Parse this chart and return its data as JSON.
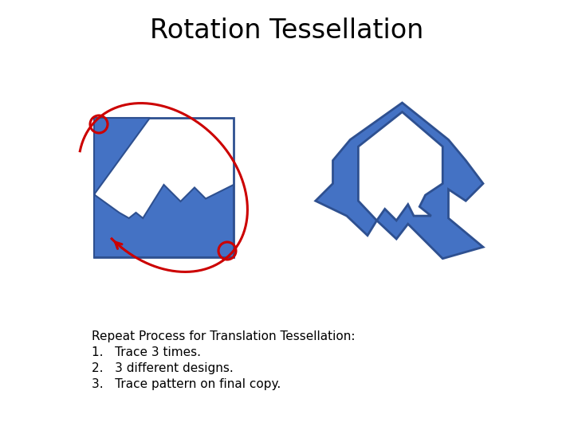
{
  "title": "Rotation Tessellation",
  "title_fontsize": 24,
  "bg_color": "#ffffff",
  "blue_color": "#4472C4",
  "blue_edge": "#2E5090",
  "red_color": "#CC0000",
  "text_lines": [
    "Repeat Process for Translation Tessellation:",
    "1.   Trace 3 times.",
    "2.   3 different designs.",
    "3.   Trace pattern on final copy."
  ],
  "text_fontsize": 11
}
